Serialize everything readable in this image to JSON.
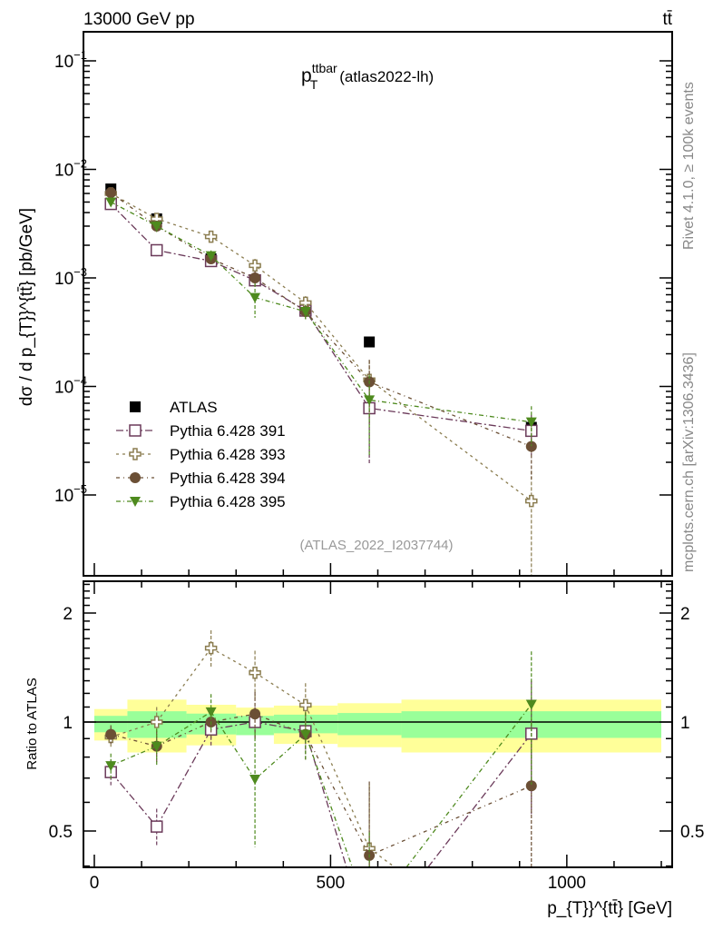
{
  "header": {
    "left": "13000 GeV pp",
    "right": "tt̄"
  },
  "side_text": {
    "top": "Rivet 4.1.0, ≥ 100k events",
    "bottom": "mcplots.cern.ch [arXiv:1306.3436]"
  },
  "chart_data": [
    {
      "type": "scatter",
      "title": "p_T^ttbar (atlas2022-lh)",
      "title_main": "p",
      "title_sub": "T",
      "title_sup": "ttbar",
      "title_suffix": "(atlas2022-lh)",
      "annotation": "(ATLAS_2022_I2037744)",
      "xlabel": "p_{T}}^{tt̄} [GeV]",
      "ylabel": "dσ / d p_{T}}^{tt̄} [pb/GeV]",
      "xlim": [
        -23,
        1223
      ],
      "ylim": [
        1.6e-06,
        0.185
      ],
      "yscale": "log",
      "ytick_exponents": [
        -1,
        -2,
        -3,
        -4,
        -5
      ],
      "legend_position": "bottom-left",
      "x": [
        35,
        132,
        247,
        340,
        447,
        582,
        925
      ],
      "bins": [
        0,
        70,
        195,
        300,
        380,
        515,
        650,
        1200
      ],
      "series": [
        {
          "name": "ATLAS",
          "color": "#000000",
          "marker": "filled-square",
          "values": [
            0.0066,
            0.0035,
            0.0015,
            0.00095,
            0.00053,
            0.000257,
            4.2e-05
          ]
        },
        {
          "name": "Pythia 6.428 391",
          "color": "#6b3a5a",
          "marker": "open-square",
          "values": [
            0.0048,
            0.0018,
            0.00143,
            0.00095,
            0.0005,
            6.3e-05,
            3.9e-05
          ],
          "rel_err": [
            0.08,
            0.12,
            0.1,
            0.1,
            0.12,
            0.7,
            0.4
          ]
        },
        {
          "name": "Pythia 6.428 393",
          "color": "#8b7d50",
          "marker": "open-cross",
          "values": [
            0.006,
            0.0035,
            0.0024,
            0.0013,
            0.00059,
            0.000115,
            8.8e-06
          ],
          "rel_err": [
            0.06,
            0.1,
            0.12,
            0.15,
            0.15,
            0.5,
            0.9
          ]
        },
        {
          "name": "Pythia 6.428 394",
          "color": "#6b4f35",
          "marker": "filled-circle",
          "values": [
            0.0061,
            0.003,
            0.0015,
            0.001,
            0.00049,
            0.00011,
            2.8e-05
          ],
          "rel_err": [
            0.06,
            0.1,
            0.1,
            0.15,
            0.15,
            0.6,
            0.5
          ]
        },
        {
          "name": "Pythia 6.428 395",
          "color": "#4e8a1e",
          "marker": "filled-triangle-down",
          "values": [
            0.005,
            0.003,
            0.0016,
            0.00066,
            0.00049,
            7.5e-05,
            4.7e-05
          ],
          "rel_err": [
            0.08,
            0.12,
            0.12,
            0.35,
            0.15,
            0.7,
            0.4
          ]
        }
      ]
    },
    {
      "type": "line",
      "ylabel": "Ratio to ATLAS",
      "yscale": "log",
      "ylim": [
        0.397,
        2.45
      ],
      "yticks": [
        "0.5",
        "1",
        "2"
      ],
      "ytick_values": [
        0.5,
        1,
        2
      ],
      "xticks": [
        "0",
        "500",
        "1000"
      ],
      "xtick_values": [
        0,
        500,
        1000
      ],
      "band_colors": {
        "outer": "#ffff99",
        "inner": "#99ff99"
      },
      "band_outer": [
        [
          0.889,
          1.086
        ],
        [
          0.824,
          1.153
        ],
        [
          0.862,
          1.116
        ],
        [
          0.92,
          1.096
        ],
        [
          0.87,
          1.11
        ],
        [
          0.852,
          1.127
        ],
        [
          0.824,
          1.153
        ]
      ],
      "band_inner": [
        [
          0.937,
          1.04
        ],
        [
          0.904,
          1.071
        ],
        [
          0.924,
          1.055
        ],
        [
          0.92,
          1.04
        ],
        [
          0.931,
          1.048
        ],
        [
          0.92,
          1.059
        ],
        [
          0.904,
          1.071
        ]
      ]
    }
  ]
}
